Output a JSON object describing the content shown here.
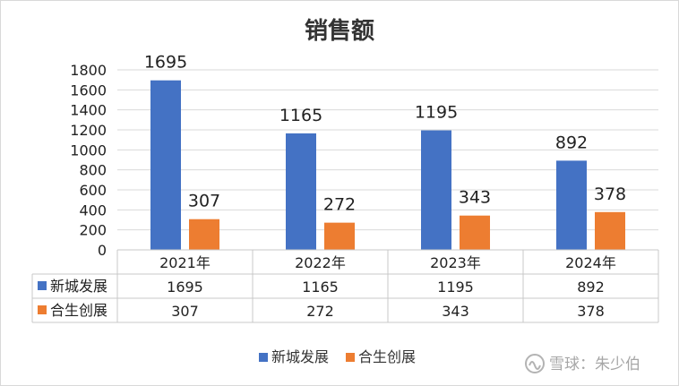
{
  "chart_data": {
    "type": "bar",
    "title": "销售额",
    "categories": [
      "2021年",
      "2022年",
      "2023年",
      "2024年"
    ],
    "series": [
      {
        "name": "新城发展",
        "color": "#4472C4",
        "values": [
          1695,
          1165,
          1195,
          892
        ]
      },
      {
        "name": "合生创展",
        "color": "#ED7D31",
        "values": [
          307,
          272,
          343,
          378
        ]
      }
    ],
    "ylim": [
      0,
      1800
    ],
    "yticks": [
      0,
      200,
      400,
      600,
      800,
      1000,
      1200,
      1400,
      1600,
      1800
    ],
    "grid": true,
    "data_table": true,
    "legend_position": "bottom"
  },
  "watermark": "雪球：朱少伯"
}
